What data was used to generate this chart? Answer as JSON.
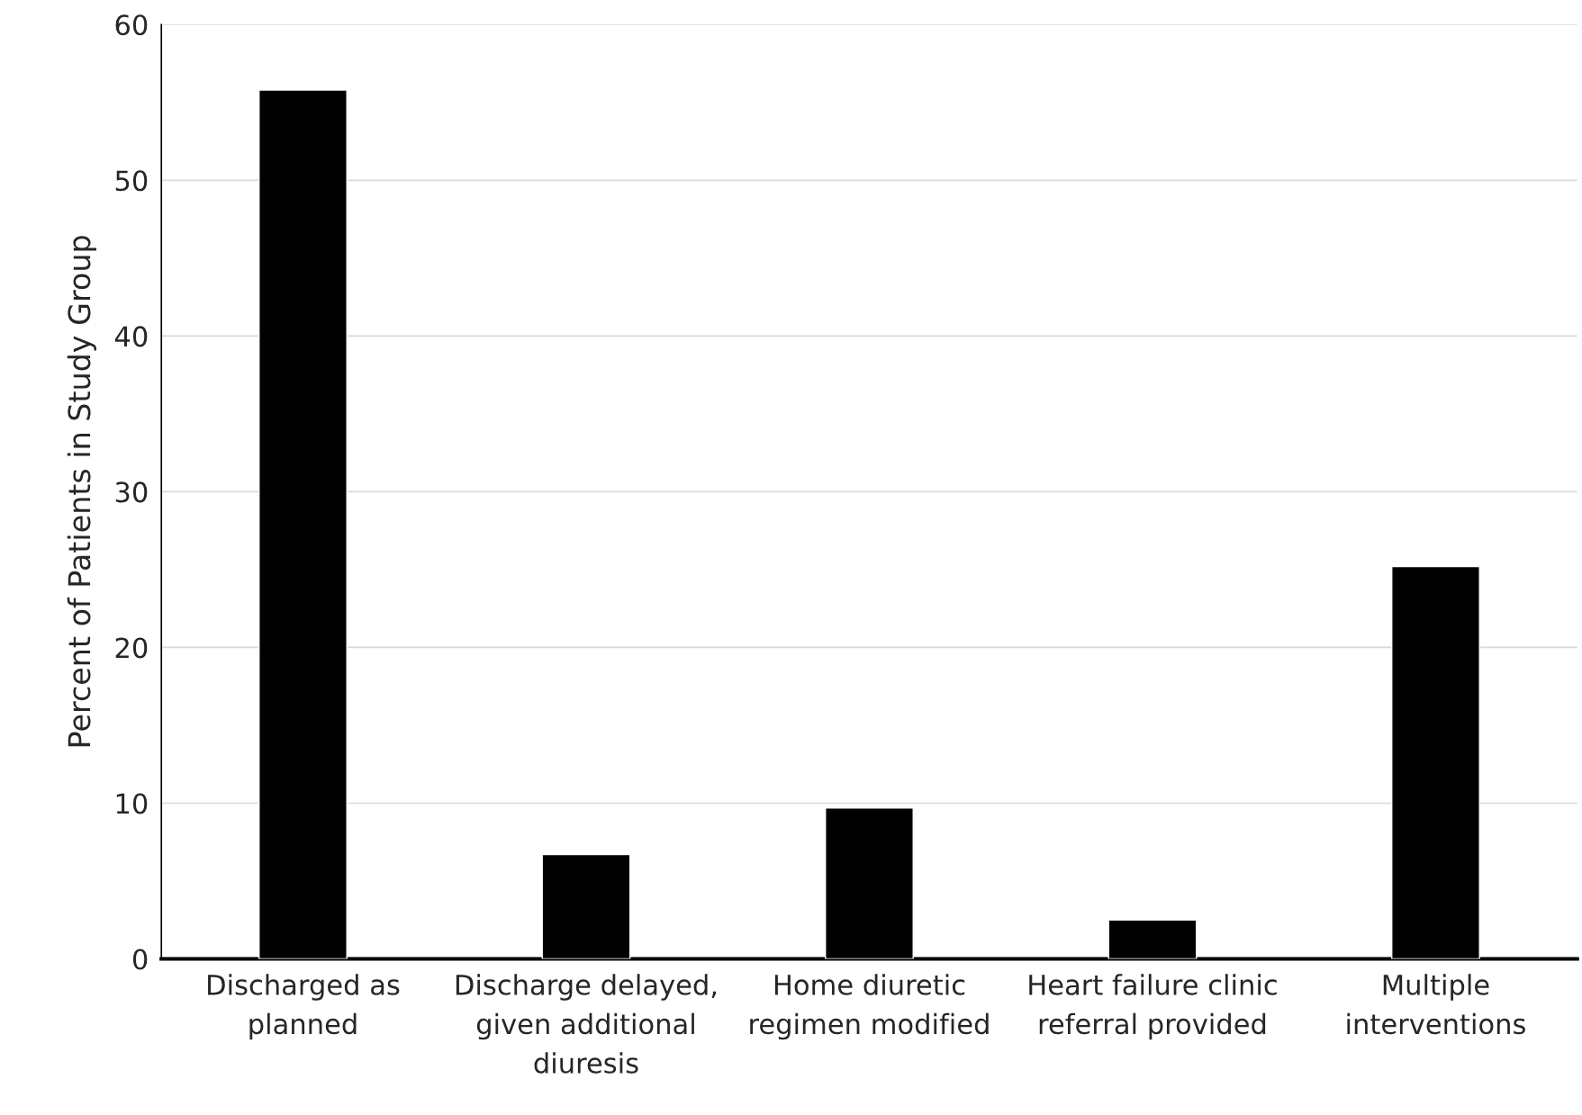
{
  "chart_data": {
    "type": "bar",
    "ylabel": "Percent of Patients in Study Group",
    "categories": [
      "Discharged as\nplanned",
      "Discharge delayed,\ngiven additional\ndiuresis",
      "Home diuretic\nregimen modified",
      "Heart failure clinic\nreferral provided",
      "Multiple\ninterventions"
    ],
    "values": [
      55.8,
      6.7,
      9.7,
      2.5,
      25.2
    ],
    "color": "#000000",
    "ylim": [
      0,
      60
    ],
    "yticks": [
      0,
      10,
      20,
      30,
      40,
      50,
      60
    ],
    "grid": "y"
  }
}
